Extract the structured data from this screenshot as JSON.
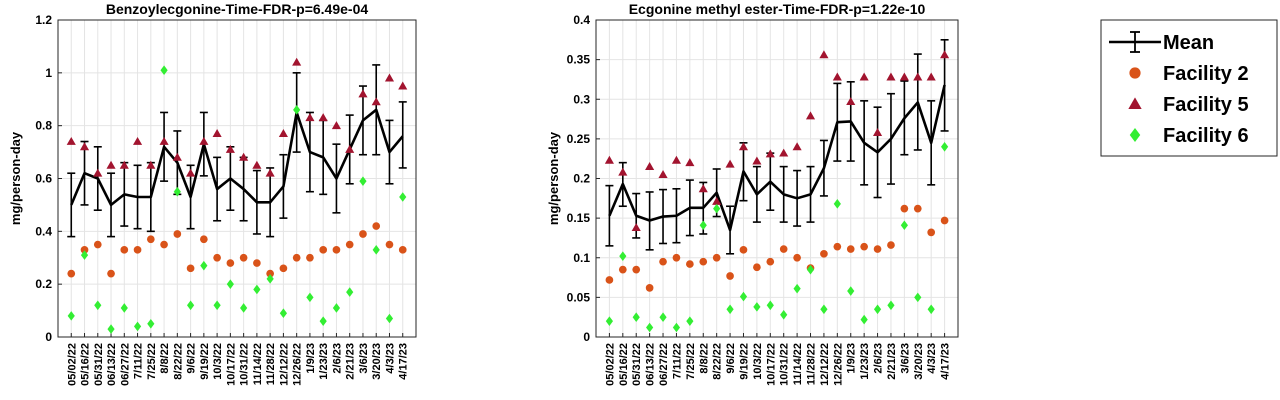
{
  "colors": {
    "mean": "#000000",
    "facility2": "#D95319",
    "facility5": "#A2142F",
    "facility6": "#33EE33"
  },
  "legend": [
    {
      "label": "Mean",
      "marker": "errorbar"
    },
    {
      "label": "Facility 2",
      "marker": "circle"
    },
    {
      "label": "Facility 5",
      "marker": "triangle"
    },
    {
      "label": "Facility 6",
      "marker": "diamond"
    }
  ],
  "chart_data": [
    {
      "type": "line",
      "title": "Benzoylecgonine-Time-FDR-p=6.49e-04",
      "ylabel": "mg/person-day",
      "xlabel": "",
      "ylim": [
        0,
        1.2
      ],
      "yticks": [
        0,
        0.2,
        0.4,
        0.6,
        0.8,
        1,
        1.2
      ],
      "ytick_labels": [
        "0",
        "0.2",
        "0.4",
        "0.6",
        "0.8",
        "1",
        "1.2"
      ],
      "grid": true,
      "tick_labels": [
        "05/02/22",
        "05/16/22",
        "05/31/22",
        "06/13/22",
        "06/27/22",
        "7/11/22",
        "7/25/22",
        "8/8/22",
        "8/22/22",
        "9/6/22",
        "9/19/22",
        "10/3/22",
        "10/17/22",
        "10/31/22",
        "11/14/22",
        "11/28/22",
        "12/12/22",
        "12/26/22",
        "1/9/23",
        "1/23/23",
        "2/6/23",
        "2/21/23",
        "3/6/23",
        "3/20/23",
        "4/3/23",
        "4/17/23"
      ],
      "x": [
        "05/02/22",
        "05/16/22",
        "05/31/22",
        "06/13/22",
        "06/27/22",
        "07/11/22",
        "07/25/22",
        "08/08/22",
        "08/22/22",
        "09/06/22",
        "09/19/22",
        "10/03/22",
        "10/17/22",
        "10/31/22",
        "11/14/22",
        "11/28/22",
        "12/12/22",
        "12/26/22",
        "01/09/23",
        "01/23/23",
        "02/06/23",
        "02/21/23",
        "03/06/23",
        "03/20/23",
        "04/03/23",
        "04/17/23"
      ],
      "series": [
        {
          "name": "Mean",
          "kind": "mean",
          "values": [
            0.5,
            0.62,
            0.6,
            0.5,
            0.54,
            0.53,
            0.53,
            0.72,
            0.66,
            0.53,
            0.73,
            0.56,
            0.6,
            0.56,
            0.51,
            0.51,
            0.57,
            0.85,
            0.7,
            0.68,
            0.6,
            0.71,
            0.82,
            0.86,
            0.7,
            0.76
          ],
          "lower": [
            0.38,
            0.5,
            0.48,
            0.38,
            0.42,
            0.41,
            0.4,
            0.59,
            0.54,
            0.41,
            0.61,
            0.44,
            0.48,
            0.44,
            0.39,
            0.38,
            0.45,
            0.7,
            0.55,
            0.54,
            0.47,
            0.58,
            0.69,
            0.69,
            0.58,
            0.64
          ],
          "upper": [
            0.62,
            0.74,
            0.72,
            0.62,
            0.66,
            0.65,
            0.66,
            0.85,
            0.78,
            0.65,
            0.85,
            0.68,
            0.72,
            0.68,
            0.63,
            0.64,
            0.69,
            1.0,
            0.85,
            0.82,
            0.73,
            0.84,
            0.95,
            1.03,
            0.82,
            0.89
          ]
        },
        {
          "name": "Facility 2",
          "kind": "circle",
          "values": [
            0.24,
            0.33,
            0.35,
            0.24,
            0.33,
            0.33,
            0.37,
            0.35,
            0.39,
            0.26,
            0.37,
            0.3,
            0.28,
            0.3,
            0.28,
            0.24,
            0.26,
            0.3,
            0.3,
            0.33,
            0.33,
            0.35,
            0.39,
            0.42,
            0.35,
            0.33
          ]
        },
        {
          "name": "Facility 5",
          "kind": "triangle",
          "values": [
            0.74,
            0.72,
            0.62,
            0.65,
            0.65,
            0.74,
            0.65,
            0.74,
            0.68,
            0.62,
            0.74,
            0.77,
            0.71,
            0.68,
            0.65,
            0.62,
            0.77,
            1.04,
            0.83,
            0.83,
            0.8,
            0.71,
            0.92,
            0.89,
            0.98,
            0.95
          ]
        },
        {
          "name": "Facility 6",
          "kind": "diamond",
          "values": [
            0.08,
            0.31,
            0.12,
            0.03,
            0.11,
            0.04,
            0.05,
            1.01,
            0.55,
            0.12,
            0.27,
            0.12,
            0.2,
            0.11,
            0.18,
            0.22,
            0.09,
            0.86,
            0.15,
            0.06,
            0.11,
            0.17,
            0.59,
            0.33,
            0.07,
            0.53
          ]
        }
      ]
    },
    {
      "type": "line",
      "title": "Ecgonine methyl ester-Time-FDR-p=1.22e-10",
      "ylabel": "mg/person-day",
      "xlabel": "",
      "ylim": [
        0,
        0.4
      ],
      "yticks": [
        0,
        0.05,
        0.1,
        0.15,
        0.2,
        0.25,
        0.3,
        0.35,
        0.4
      ],
      "ytick_labels": [
        "0",
        "0.05",
        "0.1",
        "0.15",
        "0.2",
        "0.25",
        "0.3",
        "0.35",
        "0.4"
      ],
      "grid": true,
      "tick_labels": [
        "05/02/22",
        "05/16/22",
        "05/31/22",
        "06/13/22",
        "06/27/22",
        "7/11/22",
        "7/25/22",
        "8/8/22",
        "8/22/22",
        "9/6/22",
        "9/19/22",
        "10/3/22",
        "10/17/22",
        "10/31/22",
        "11/14/22",
        "11/28/22",
        "12/12/22",
        "12/26/22",
        "1/9/23",
        "1/23/23",
        "2/6/23",
        "2/21/23",
        "3/6/23",
        "3/20/23",
        "4/3/23",
        "4/17/23"
      ],
      "x": [
        "05/02/22",
        "05/16/22",
        "05/31/22",
        "06/13/22",
        "06/27/22",
        "07/11/22",
        "07/25/22",
        "08/08/22",
        "08/22/22",
        "09/06/22",
        "09/19/22",
        "10/03/22",
        "10/17/22",
        "10/31/22",
        "11/14/22",
        "11/28/22",
        "12/12/22",
        "12/26/22",
        "01/09/23",
        "01/23/23",
        "02/06/23",
        "02/21/23",
        "03/06/23",
        "03/20/23",
        "04/03/23",
        "04/17/23"
      ],
      "series": [
        {
          "name": "Mean",
          "kind": "mean",
          "values": [
            0.153,
            0.193,
            0.153,
            0.147,
            0.152,
            0.153,
            0.163,
            0.163,
            0.182,
            0.135,
            0.209,
            0.18,
            0.196,
            0.18,
            0.175,
            0.18,
            0.213,
            0.271,
            0.272,
            0.245,
            0.233,
            0.25,
            0.276,
            0.296,
            0.245,
            0.318
          ],
          "lower": [
            0.115,
            0.165,
            0.125,
            0.11,
            0.118,
            0.119,
            0.128,
            0.13,
            0.152,
            0.105,
            0.172,
            0.145,
            0.16,
            0.145,
            0.14,
            0.145,
            0.178,
            0.222,
            0.222,
            0.192,
            0.176,
            0.193,
            0.23,
            0.236,
            0.192,
            0.26
          ],
          "upper": [
            0.191,
            0.22,
            0.181,
            0.183,
            0.186,
            0.187,
            0.198,
            0.195,
            0.212,
            0.165,
            0.245,
            0.215,
            0.232,
            0.215,
            0.21,
            0.215,
            0.248,
            0.32,
            0.322,
            0.298,
            0.29,
            0.307,
            0.323,
            0.357,
            0.298,
            0.375
          ]
        },
        {
          "name": "Facility 2",
          "kind": "circle",
          "values": [
            0.072,
            0.085,
            0.085,
            0.062,
            0.095,
            0.1,
            0.092,
            0.095,
            0.1,
            0.077,
            0.11,
            0.088,
            0.095,
            0.111,
            0.1,
            0.087,
            0.105,
            0.114,
            0.111,
            0.114,
            0.111,
            0.116,
            0.162,
            0.162,
            0.132,
            0.147
          ]
        },
        {
          "name": "Facility 5",
          "kind": "triangle",
          "values": [
            0.223,
            0.208,
            0.138,
            0.215,
            0.205,
            0.223,
            0.22,
            0.187,
            0.171,
            0.218,
            0.24,
            0.222,
            0.231,
            0.232,
            0.24,
            0.279,
            0.356,
            0.328,
            0.297,
            0.328,
            0.258,
            0.328,
            0.328,
            0.328,
            0.328,
            0.356
          ]
        },
        {
          "name": "Facility 6",
          "kind": "diamond",
          "values": [
            0.02,
            0.102,
            0.025,
            0.012,
            0.025,
            0.012,
            0.02,
            0.141,
            0.162,
            0.035,
            0.051,
            0.038,
            0.04,
            0.028,
            0.061,
            0.085,
            0.035,
            0.168,
            0.058,
            0.022,
            0.035,
            0.04,
            0.141,
            0.05,
            0.035,
            0.24
          ]
        }
      ]
    }
  ]
}
